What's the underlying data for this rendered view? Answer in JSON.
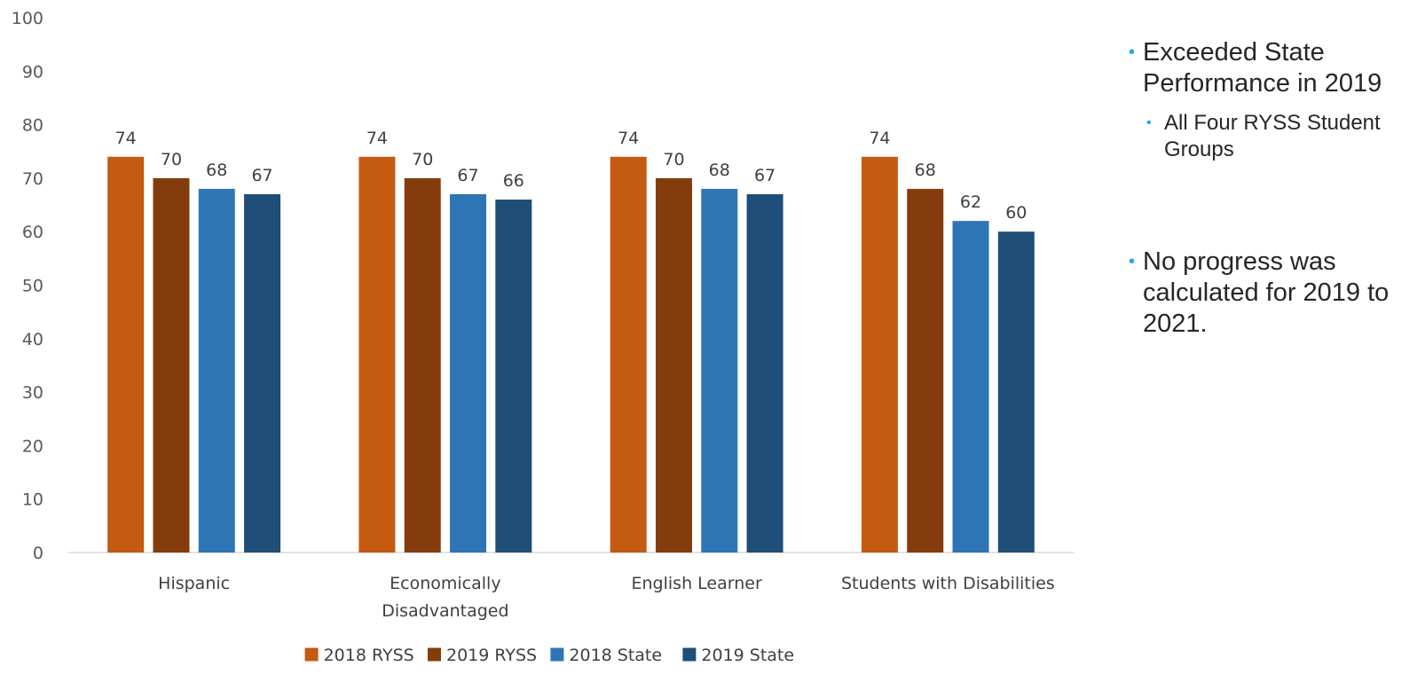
{
  "chart_data": {
    "type": "bar",
    "categories": [
      "Hispanic",
      [
        "Economically",
        "Disadvantaged"
      ],
      "English Learner",
      "Students with Disabilities"
    ],
    "series": [
      {
        "name": "2018 RYSS",
        "color": "#C55A11",
        "values": [
          74,
          74,
          74,
          74
        ]
      },
      {
        "name": "2019 RYSS",
        "color": "#843C0C",
        "values": [
          70,
          70,
          70,
          68
        ]
      },
      {
        "name": "2018 State",
        "color": "#2E75B6",
        "values": [
          68,
          67,
          68,
          62
        ]
      },
      {
        "name": "2019 State",
        "color": "#1F4E79",
        "values": [
          67,
          66,
          67,
          60
        ]
      }
    ],
    "ylim": [
      0,
      100
    ],
    "yticks": [
      0,
      10,
      20,
      30,
      40,
      50,
      60,
      70,
      80,
      90,
      100
    ],
    "grid": false,
    "legend_position": "bottom",
    "data_labels": true
  },
  "notes": {
    "bullet1": "Exceeded State Performance in 2019",
    "sub_bullet1": "All Four RYSS Student Groups",
    "bullet2": "No progress was calculated for 2019 to 2021."
  },
  "bullet_color": "#1FA7E0"
}
